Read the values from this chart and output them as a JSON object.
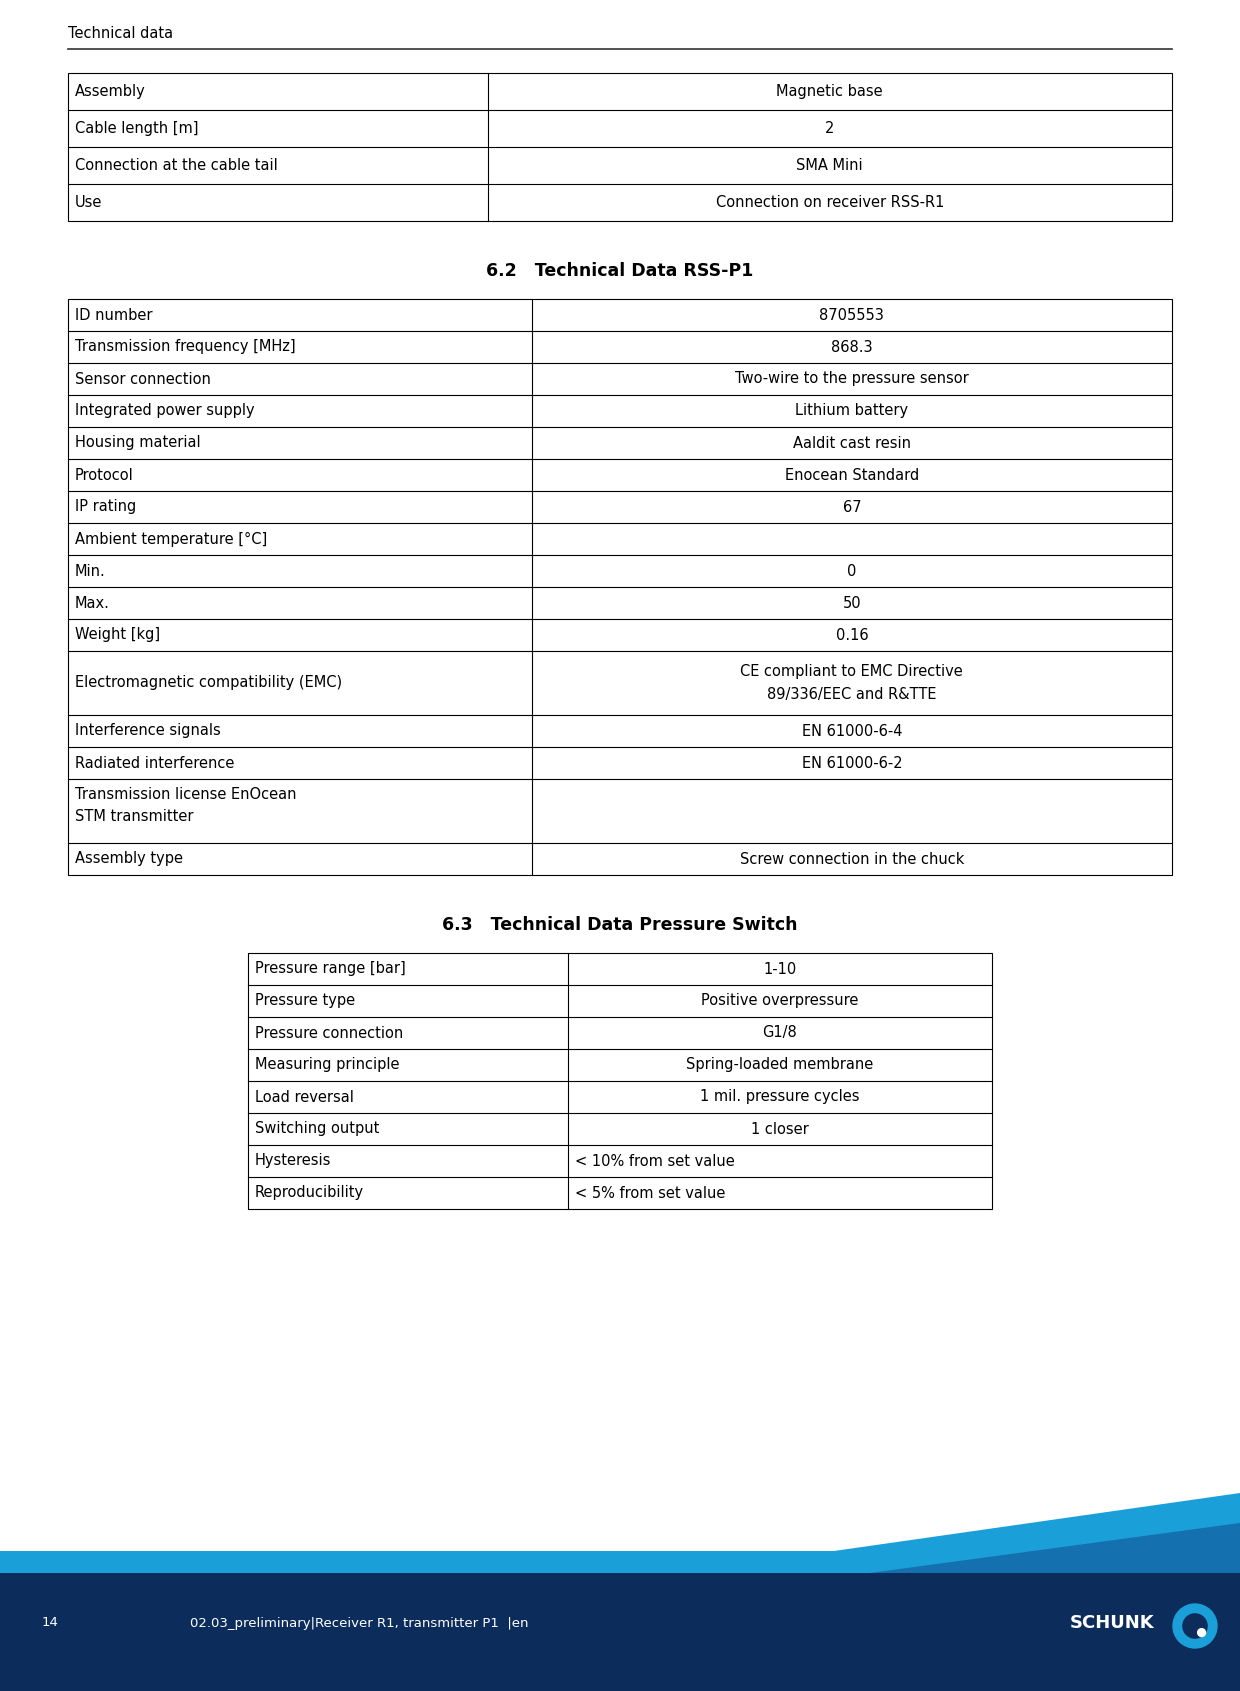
{
  "page_title": "Technical data",
  "table1_rows": [
    [
      "Assembly",
      "Magnetic base",
      "center"
    ],
    [
      "Cable length [m]",
      "2",
      "center"
    ],
    [
      "Connection at the cable tail",
      "SMA Mini",
      "center"
    ],
    [
      "Use",
      "Connection on receiver RSS-R1",
      "center"
    ]
  ],
  "section2_title": "6.2   Technical Data RSS-P1",
  "table2_rows": [
    [
      "ID number",
      "8705553",
      "center",
      1
    ],
    [
      "Transmission frequency [MHz]",
      "868.3",
      "center",
      1
    ],
    [
      "Sensor connection",
      "Two-wire to the pressure sensor",
      "center",
      1
    ],
    [
      "Integrated power supply",
      "Lithium battery",
      "center",
      1
    ],
    [
      "Housing material",
      "Aaldit cast resin",
      "center",
      1
    ],
    [
      "Protocol",
      "Enocean Standard",
      "center",
      1
    ],
    [
      "IP rating",
      "67",
      "center",
      1
    ],
    [
      "Ambient temperature [°C]",
      "",
      "center",
      1
    ],
    [
      "Min.",
      "0",
      "center",
      1
    ],
    [
      "Max.",
      "50",
      "center",
      1
    ],
    [
      "Weight [kg]",
      "0.16",
      "center",
      1
    ],
    [
      "Electromagnetic compatibility (EMC)",
      "CE compliant to EMC Directive\n89/336/EEC and R&TTE",
      "center",
      2
    ],
    [
      "Interference signals",
      "EN 61000-6-4",
      "center",
      1
    ],
    [
      "Radiated interference",
      "EN 61000-6-2",
      "center",
      1
    ],
    [
      "Transmission license EnOcean\nSTM transmitter",
      "",
      "center",
      2
    ],
    [
      "Assembly type",
      "Screw connection in the chuck",
      "center",
      1
    ]
  ],
  "section3_title": "6.3   Technical Data Pressure Switch",
  "table3_rows": [
    [
      "Pressure range [bar]",
      "1-10",
      "center"
    ],
    [
      "Pressure type",
      "Positive overpressure",
      "center"
    ],
    [
      "Pressure connection",
      "G1/8",
      "center"
    ],
    [
      "Measuring principle",
      "Spring-loaded membrane",
      "center"
    ],
    [
      "Load reversal",
      "1 mil. pressure cycles",
      "center"
    ],
    [
      "Switching output",
      "1 closer",
      "center"
    ],
    [
      "Hysteresis",
      "< 10% from set value",
      "left"
    ],
    [
      "Reproducibility",
      "< 5% from set value",
      "left"
    ]
  ],
  "footer_page": "14",
  "footer_text": "02.03_preliminary|Receiver R1, transmitter P1  |en",
  "footer_bg_dark": "#0c2d5c",
  "footer_bg_light": "#1b9fd8",
  "footer_accent": "#1570b0",
  "bg_color": "#ffffff",
  "table_border_color": "#000000",
  "text_color": "#000000",
  "font_size_body": 10.5,
  "font_size_title": 12.5
}
